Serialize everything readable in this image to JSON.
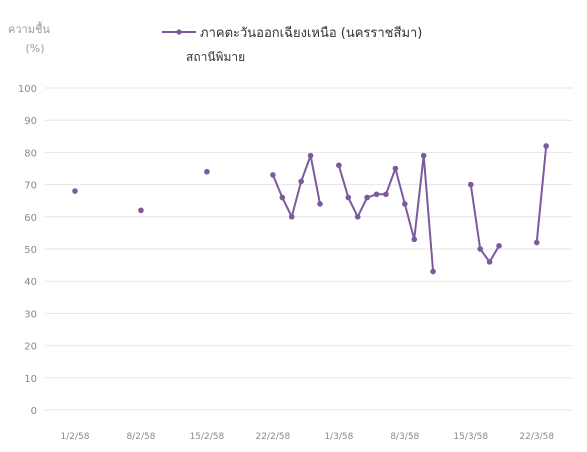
{
  "chart_data": {
    "type": "line",
    "ylabel_line1": "ความชื้น",
    "ylabel_line2": "(%)",
    "subtitle": "สถานีพิมาย",
    "ylim": [
      0,
      100
    ],
    "yticks": [
      0,
      10,
      20,
      30,
      40,
      50,
      60,
      70,
      80,
      90,
      100
    ],
    "xlim": [
      1,
      53
    ],
    "xticks": [
      {
        "x": 1,
        "label": "1/2/58"
      },
      {
        "x": 8,
        "label": "8/2/58"
      },
      {
        "x": 15,
        "label": "15/2/58"
      },
      {
        "x": 22,
        "label": "22/2/58"
      },
      {
        "x": 29,
        "label": "1/3/58"
      },
      {
        "x": 36,
        "label": "8/3/58"
      },
      {
        "x": 43,
        "label": "15/3/58"
      },
      {
        "x": 50,
        "label": "22/3/58"
      }
    ],
    "grid": true,
    "legend_position": "top",
    "color": "#7b5a9e",
    "series": [
      {
        "name": "ภาคตะวันออกเฉียงเหนือ (นครราชสีมา)",
        "points": [
          {
            "x": 1,
            "y": 68
          },
          {
            "x": 8,
            "y": 62
          },
          {
            "x": 15,
            "y": 74
          },
          {
            "x": 22,
            "y": 73
          },
          {
            "x": 23,
            "y": 66
          },
          {
            "x": 24,
            "y": 60
          },
          {
            "x": 25,
            "y": 71
          },
          {
            "x": 26,
            "y": 79
          },
          {
            "x": 27,
            "y": 64
          },
          {
            "x": 29,
            "y": 76
          },
          {
            "x": 30,
            "y": 66
          },
          {
            "x": 31,
            "y": 60
          },
          {
            "x": 32,
            "y": 66
          },
          {
            "x": 33,
            "y": 67
          },
          {
            "x": 34,
            "y": 67
          },
          {
            "x": 35,
            "y": 75
          },
          {
            "x": 36,
            "y": 64
          },
          {
            "x": 37,
            "y": 53
          },
          {
            "x": 38,
            "y": 79
          },
          {
            "x": 39,
            "y": 43
          },
          {
            "x": 43,
            "y": 70
          },
          {
            "x": 44,
            "y": 50
          },
          {
            "x": 45,
            "y": 46
          },
          {
            "x": 46,
            "y": 51
          },
          {
            "x": 50,
            "y": 52
          },
          {
            "x": 51,
            "y": 82
          }
        ]
      }
    ]
  }
}
